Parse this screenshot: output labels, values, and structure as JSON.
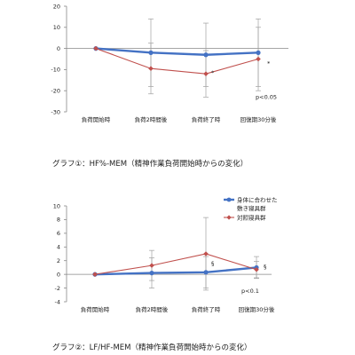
{
  "colors": {
    "blue": "#4472C4",
    "red": "#C0504D",
    "axis": "#888888",
    "error": "#a0a0a0"
  },
  "chart_data": [
    {
      "type": "line",
      "caption": "グラフ①：HF%-MEM（精神作業負荷開始時からの変化）",
      "categories": [
        "負荷開始時",
        "負荷2時間後",
        "負荷終了時",
        "回復期30分後"
      ],
      "ylim": [
        -30,
        20
      ],
      "yticks": [
        20,
        10,
        0,
        -10,
        -20,
        -30
      ],
      "series": [
        {
          "key": "blue",
          "values": [
            0,
            -2,
            -3,
            -2
          ],
          "err": [
            0,
            16,
            15,
            16
          ]
        },
        {
          "key": "red",
          "values": [
            0,
            -9.5,
            -12,
            -5
          ],
          "err": [
            0,
            12,
            11,
            15
          ]
        }
      ],
      "sig_marks": [
        {
          "cat": 2,
          "y": -11.5,
          "dx": 6,
          "text": "*"
        },
        {
          "cat": 3,
          "y": -7,
          "dx": 10,
          "text": "*"
        }
      ],
      "p_note": "p<0.05",
      "p_note_y": -24
    },
    {
      "type": "line",
      "caption": "グラフ②：LF/HF-MEM（精神作業負荷開始時からの変化）",
      "categories": [
        "負荷開始時",
        "負荷2時間後",
        "負荷終了時",
        "回復期30分後"
      ],
      "ylim": [
        -4,
        10
      ],
      "yticks": [
        10,
        8,
        6,
        4,
        2,
        0,
        -2,
        -4
      ],
      "series": [
        {
          "key": "blue",
          "name": "身体に合わせた 敷き寝具群",
          "name_lines": [
            "身体に合わせた",
            "敷き寝具群"
          ],
          "values": [
            0,
            0.2,
            0.3,
            1.0
          ],
          "err": [
            0,
            2.2,
            2.3,
            1.6
          ]
        },
        {
          "key": "red",
          "name": "対照寝具群",
          "name_lines": [
            "対照寝具群"
          ],
          "values": [
            0,
            1.3,
            3.0,
            0.7
          ],
          "err": [
            0,
            2.2,
            5.3,
            1.2
          ]
        }
      ],
      "sig_marks": [
        {
          "cat": 2,
          "y": 1.6,
          "dx": 6,
          "text": "§"
        },
        {
          "cat": 3,
          "y": 1.1,
          "dx": 8,
          "text": "§"
        }
      ],
      "p_note": "p<0.1",
      "p_note_y": -2.7
    }
  ]
}
